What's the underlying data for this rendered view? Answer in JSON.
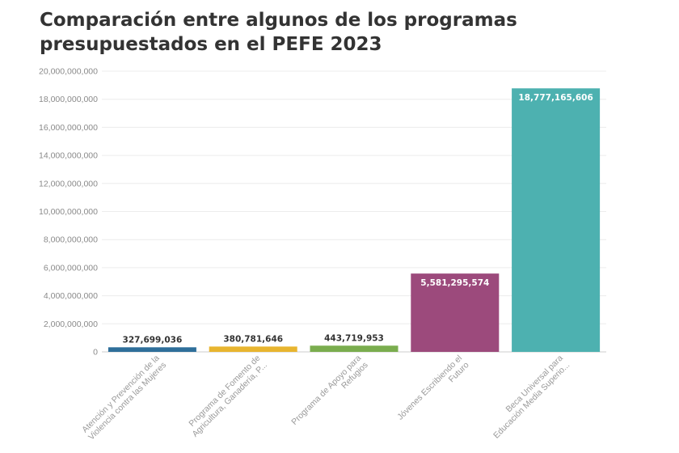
{
  "chart_data": {
    "type": "bar",
    "title": "Comparación entre algunos de los programas presupuestados en el PEFE 2023",
    "xlabel": "",
    "ylabel": "",
    "ylim": [
      0,
      20000000000
    ],
    "yticks": [
      0,
      2000000000,
      4000000000,
      6000000000,
      8000000000,
      10000000000,
      12000000000,
      14000000000,
      16000000000,
      18000000000,
      20000000000
    ],
    "ytick_labels": [
      "0",
      "2,000,000,000",
      "4,000,000,000",
      "6,000,000,000",
      "8,000,000,000",
      "10,000,000,000",
      "12,000,000,000",
      "14,000,000,000",
      "16,000,000,000",
      "18,000,000,000",
      "20,000,000,000"
    ],
    "grid": true,
    "categories": [
      [
        "Atención y Prevención de la",
        "Violencia contra las Mujeres"
      ],
      [
        "Programa de Fomento de",
        "Agricultura, Ganadería, P..."
      ],
      [
        "Programa de Apoyo para",
        "Refugios"
      ],
      [
        "Jóvenes Escribiendo el",
        "Futuro"
      ],
      [
        "Beca Universal para",
        "Educación Media Superio..."
      ]
    ],
    "values": [
      327699036,
      380781646,
      443719953,
      5581295574,
      18777165606
    ],
    "value_labels": [
      "327,699,036",
      "380,781,646",
      "443,719,953",
      "5,581,295,574",
      "18,777,165,606"
    ],
    "colors": [
      "#2f6f9a",
      "#e8b52f",
      "#7aad4e",
      "#9c4a7c",
      "#4db1b0"
    ]
  }
}
